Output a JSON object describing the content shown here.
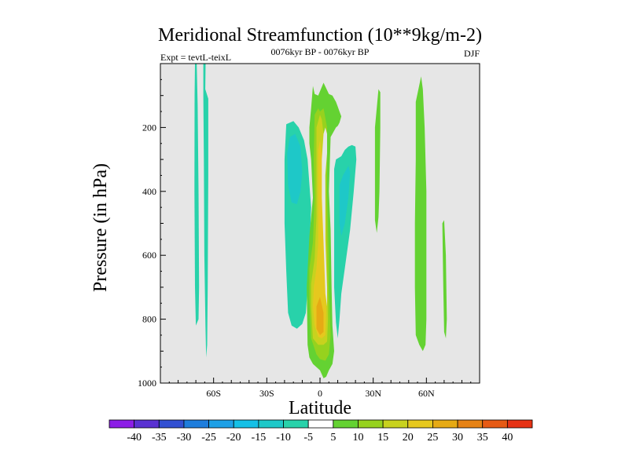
{
  "chart_data": {
    "type": "heatmap",
    "title": "Meridional Streamfunction (10**9kg/m-2)",
    "left_label": "Expt = tevtL-teixL",
    "center_label": "0076kyr BP - 0076kyr BP",
    "right_label": "DJF",
    "xlabel": "Latitude",
    "ylabel": "Pressure (in hPa)",
    "x_range": [
      -90,
      90
    ],
    "y_range": [
      0,
      1000
    ],
    "y_reversed": true,
    "x_ticks": [
      {
        "value": -60,
        "label": "60S"
      },
      {
        "value": -30,
        "label": "30S"
      },
      {
        "value": 0,
        "label": "0"
      },
      {
        "value": 30,
        "label": "30N"
      },
      {
        "value": 60,
        "label": "60N"
      }
    ],
    "y_ticks": [
      {
        "value": 200,
        "label": "200"
      },
      {
        "value": 400,
        "label": "400"
      },
      {
        "value": 600,
        "label": "600"
      },
      {
        "value": 800,
        "label": "800"
      },
      {
        "value": 1000,
        "label": "1000"
      }
    ],
    "background_color": "#e6e6e6",
    "colorbar": {
      "labels": [
        "-40",
        "-35",
        "-30",
        "-25",
        "-20",
        "-15",
        "-10",
        "-5",
        "5",
        "10",
        "15",
        "20",
        "25",
        "30",
        "35",
        "40"
      ],
      "colors": [
        "#8c1ee6",
        "#5a32d2",
        "#3250d2",
        "#1e7ddc",
        "#1ea0e6",
        "#14c0e6",
        "#1ec8c8",
        "#28d2aa",
        "#ffffff",
        "#64d232",
        "#96d21e",
        "#c8d21e",
        "#e6c81e",
        "#e6aa14",
        "#e68214",
        "#e65a14",
        "#e63214"
      ]
    },
    "regions": [
      {
        "name": "cyan-thin-sh-60-left",
        "value": -7,
        "color": "#28d2aa",
        "polygon": [
          [
            -70.5,
            0
          ],
          [
            -69.5,
            0
          ],
          [
            -69,
            130
          ],
          [
            -68.5,
            400
          ],
          [
            -68.2,
            700
          ],
          [
            -68.5,
            800
          ],
          [
            -70,
            820
          ],
          [
            -70.5,
            700
          ],
          [
            -70.8,
            400
          ],
          [
            -70.7,
            100
          ]
        ]
      },
      {
        "name": "cyan-thin-sh-60-right",
        "value": -7,
        "color": "#28d2aa",
        "polygon": [
          [
            -65.8,
            0
          ],
          [
            -64.5,
            0
          ],
          [
            -64.7,
            80
          ],
          [
            -63,
            110
          ],
          [
            -63,
            350
          ],
          [
            -63.3,
            700
          ],
          [
            -63.6,
            880
          ],
          [
            -64.2,
            920
          ],
          [
            -64.6,
            820
          ],
          [
            -65.2,
            600
          ],
          [
            -65.5,
            300
          ],
          [
            -65.8,
            100
          ]
        ]
      },
      {
        "name": "cyan-sh-cell",
        "value": -8,
        "color": "#28d2aa",
        "polygon": [
          [
            -19,
            190
          ],
          [
            -15,
            180
          ],
          [
            -12,
            200
          ],
          [
            -9,
            240
          ],
          [
            -7,
            300
          ],
          [
            -5,
            450
          ],
          [
            -6,
            600
          ],
          [
            -7,
            700
          ],
          [
            -8,
            780
          ],
          [
            -10,
            815
          ],
          [
            -13,
            830
          ],
          [
            -16,
            820
          ],
          [
            -18,
            780
          ],
          [
            -19,
            650
          ],
          [
            -20,
            500
          ],
          [
            -20,
            300
          ]
        ]
      },
      {
        "name": "blue-sh-cell",
        "value": -13,
        "color": "#1ec8c8",
        "polygon": [
          [
            -17,
            230
          ],
          [
            -14,
            220
          ],
          [
            -11,
            260
          ],
          [
            -10,
            340
          ],
          [
            -11,
            400
          ],
          [
            -13,
            440
          ],
          [
            -16,
            435
          ],
          [
            -18,
            380
          ],
          [
            -18.5,
            280
          ]
        ]
      },
      {
        "name": "green-nh-bl-cell",
        "value": 7,
        "color": "#64d232",
        "polygon": [
          [
            -5,
            140
          ],
          [
            -4,
            70
          ],
          [
            -3,
            95
          ],
          [
            -1,
            100
          ],
          [
            2,
            60
          ],
          [
            5,
            95
          ],
          [
            7,
            100
          ],
          [
            9,
            120
          ],
          [
            10,
            135
          ],
          [
            11,
            150
          ],
          [
            12,
            165
          ],
          [
            11,
            185
          ],
          [
            10,
            195
          ],
          [
            9,
            200
          ],
          [
            6,
            230
          ],
          [
            5,
            400
          ],
          [
            6,
            520
          ],
          [
            6.5,
            700
          ],
          [
            7,
            820
          ],
          [
            8,
            900
          ],
          [
            7,
            940
          ],
          [
            5,
            960
          ],
          [
            3.5,
            980
          ],
          [
            2,
            985
          ],
          [
            0,
            960
          ],
          [
            -4,
            940
          ],
          [
            -6,
            920
          ],
          [
            -7,
            880
          ],
          [
            -7.5,
            700
          ],
          [
            -6,
            540
          ],
          [
            -4,
            420
          ],
          [
            -5,
            300
          ],
          [
            -6,
            250
          ],
          [
            -6,
            200
          ]
        ]
      },
      {
        "name": "yellow-green-core",
        "value": 12,
        "color": "#96d21e",
        "polygon": [
          [
            -3,
            160
          ],
          [
            -1,
            140
          ],
          [
            0,
            150
          ],
          [
            2,
            140
          ],
          [
            4,
            200
          ],
          [
            4,
            400
          ],
          [
            5,
            620
          ],
          [
            5,
            700
          ],
          [
            6,
            850
          ],
          [
            5,
            910
          ],
          [
            3,
            930
          ],
          [
            0,
            925
          ],
          [
            -2,
            910
          ],
          [
            -5,
            860
          ],
          [
            -6,
            740
          ],
          [
            -6,
            640
          ],
          [
            -4,
            560
          ],
          [
            -3,
            420
          ],
          [
            -3.5,
            300
          ]
        ]
      },
      {
        "name": "yellow-core",
        "value": 17,
        "color": "#c8d21e",
        "polygon": [
          [
            -2,
            200
          ],
          [
            0,
            160
          ],
          [
            1,
            175
          ],
          [
            2,
            220
          ],
          [
            3,
            380
          ],
          [
            3.5,
            500
          ],
          [
            4,
            650
          ],
          [
            4.5,
            800
          ],
          [
            4,
            870
          ],
          [
            2,
            880
          ],
          [
            -1,
            880
          ],
          [
            -4,
            860
          ],
          [
            -5,
            760
          ],
          [
            -5,
            690
          ],
          [
            -3,
            610
          ],
          [
            -2,
            480
          ],
          [
            -2,
            300
          ]
        ]
      },
      {
        "name": "gold-core",
        "value": 22,
        "color": "#e6c81e",
        "polygon": [
          [
            -1,
            270
          ],
          [
            0,
            240
          ],
          [
            1,
            280
          ],
          [
            2,
            380
          ],
          [
            2.5,
            560
          ],
          [
            3,
            700
          ],
          [
            3.5,
            780
          ],
          [
            3,
            850
          ],
          [
            1,
            860
          ],
          [
            -1,
            855
          ],
          [
            -3,
            820
          ],
          [
            -4,
            760
          ],
          [
            -3.5,
            700
          ],
          [
            -2,
            640
          ],
          [
            -1,
            560
          ],
          [
            -1,
            420
          ]
        ]
      },
      {
        "name": "orange-core",
        "value": 27,
        "color": "#e6aa14",
        "polygon": [
          [
            -2,
            760
          ],
          [
            0,
            730
          ],
          [
            2,
            780
          ],
          [
            2,
            840
          ],
          [
            0,
            850
          ],
          [
            -2,
            830
          ]
        ]
      },
      {
        "name": "white-zero-gap",
        "value": 0,
        "color": "#e6e6e6",
        "polygon": [
          [
            2,
            220
          ],
          [
            3,
            200
          ],
          [
            4,
            220
          ],
          [
            4,
            280
          ],
          [
            3,
            350
          ],
          [
            3,
            550
          ],
          [
            4,
            700
          ],
          [
            4,
            760
          ],
          [
            3,
            720
          ],
          [
            2,
            560
          ],
          [
            1,
            420
          ],
          [
            1,
            300
          ]
        ]
      },
      {
        "name": "cyan-nh-lower",
        "value": -7,
        "color": "#28d2aa",
        "polygon": [
          [
            8,
            330
          ],
          [
            9,
            300
          ],
          [
            12,
            290
          ],
          [
            14,
            270
          ],
          [
            16,
            260
          ],
          [
            18,
            255
          ],
          [
            20,
            260
          ],
          [
            20.5,
            300
          ],
          [
            19,
            400
          ],
          [
            17,
            520
          ],
          [
            14,
            640
          ],
          [
            12,
            720
          ],
          [
            11,
            800
          ],
          [
            10,
            860
          ],
          [
            9,
            810
          ],
          [
            8,
            700
          ],
          [
            8,
            500
          ]
        ]
      },
      {
        "name": "blue-nh-lower",
        "value": -12,
        "color": "#1ec8c8",
        "polygon": [
          [
            11,
            380
          ],
          [
            13,
            350
          ],
          [
            16,
            320
          ],
          [
            17,
            340
          ],
          [
            16,
            420
          ],
          [
            14,
            500
          ],
          [
            12,
            540
          ],
          [
            11,
            500
          ]
        ]
      },
      {
        "name": "green-nh-30-strip",
        "value": 7,
        "color": "#64d232",
        "polygon": [
          [
            31,
            200
          ],
          [
            33,
            80
          ],
          [
            34,
            90
          ],
          [
            34,
            200
          ],
          [
            33.5,
            400
          ],
          [
            33,
            480
          ],
          [
            32,
            530
          ],
          [
            31,
            490
          ],
          [
            31,
            350
          ]
        ]
      },
      {
        "name": "green-nh-60-strip",
        "value": 7,
        "color": "#64d232",
        "polygon": [
          [
            54,
            120
          ],
          [
            57,
            40
          ],
          [
            58,
            80
          ],
          [
            59,
            200
          ],
          [
            60,
            400
          ],
          [
            60,
            600
          ],
          [
            60,
            800
          ],
          [
            59.5,
            880
          ],
          [
            58,
            900
          ],
          [
            56,
            880
          ],
          [
            54,
            850
          ],
          [
            53.5,
            700
          ],
          [
            53.5,
            500
          ],
          [
            54,
            300
          ]
        ]
      },
      {
        "name": "green-nh-70-strip",
        "value": 7,
        "color": "#64d232",
        "polygon": [
          [
            69,
            500
          ],
          [
            70,
            490
          ],
          [
            71,
            600
          ],
          [
            71.5,
            800
          ],
          [
            71,
            860
          ],
          [
            70,
            840
          ],
          [
            69.5,
            700
          ]
        ]
      }
    ]
  }
}
